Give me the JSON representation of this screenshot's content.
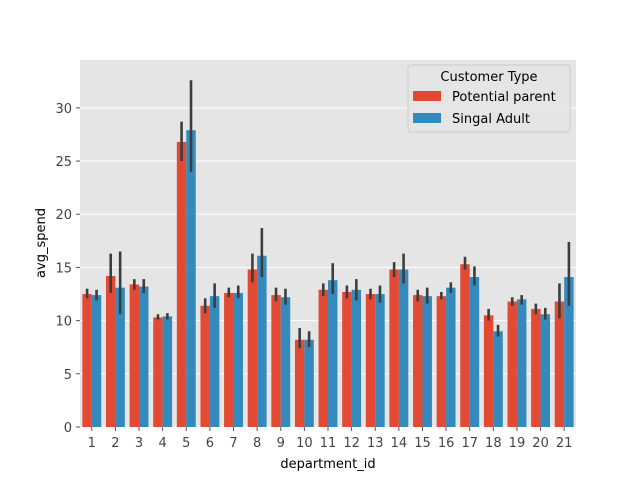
{
  "chart_data": {
    "type": "bar",
    "xlabel": "department_id",
    "ylabel": "avg_spend",
    "ylim": [
      0,
      34.5
    ],
    "yticks": [
      0,
      5,
      10,
      15,
      20,
      25,
      30
    ],
    "grid": true,
    "legend": {
      "title": "Customer Type",
      "placement": "upper right"
    },
    "categories": [
      "1",
      "2",
      "3",
      "4",
      "5",
      "6",
      "7",
      "8",
      "9",
      "10",
      "11",
      "12",
      "13",
      "14",
      "15",
      "16",
      "17",
      "18",
      "19",
      "20",
      "21"
    ],
    "series": [
      {
        "name": "Potential parent",
        "color": "#e24a33",
        "values": [
          12.5,
          14.2,
          13.4,
          10.3,
          26.8,
          11.4,
          12.6,
          14.8,
          12.4,
          8.2,
          12.9,
          12.7,
          12.5,
          14.8,
          12.4,
          12.3,
          15.3,
          10.5,
          11.8,
          11.1,
          11.8
        ],
        "err_low": [
          12.1,
          12.6,
          12.9,
          10.1,
          25.0,
          10.7,
          12.2,
          13.6,
          11.8,
          7.4,
          12.3,
          12.1,
          12.0,
          14.1,
          11.8,
          12.0,
          14.8,
          10.0,
          11.4,
          10.6,
          10.2
        ],
        "err_high": [
          13.0,
          16.3,
          13.9,
          10.6,
          28.7,
          12.1,
          13.1,
          16.3,
          13.1,
          9.3,
          13.5,
          13.3,
          13.0,
          15.5,
          12.9,
          12.7,
          16.0,
          11.1,
          12.2,
          11.6,
          13.5
        ]
      },
      {
        "name": "Singal Adult",
        "color": "#348abd",
        "values": [
          12.4,
          13.1,
          13.2,
          10.4,
          27.9,
          12.3,
          12.6,
          16.1,
          12.2,
          8.2,
          13.8,
          12.9,
          12.5,
          14.8,
          12.3,
          13.1,
          14.1,
          9.0,
          12.0,
          10.6,
          14.1
        ],
        "err_low": [
          11.9,
          10.6,
          12.6,
          10.1,
          24.0,
          11.2,
          12.1,
          14.1,
          11.5,
          7.5,
          12.5,
          11.9,
          11.7,
          13.5,
          11.6,
          12.6,
          13.3,
          8.5,
          11.5,
          10.1,
          11.4
        ],
        "err_high": [
          12.9,
          16.5,
          13.9,
          10.7,
          32.6,
          13.5,
          13.3,
          18.7,
          13.0,
          9.0,
          15.4,
          13.9,
          13.3,
          16.3,
          13.1,
          13.6,
          15.1,
          9.6,
          12.4,
          11.2,
          17.4
        ]
      }
    ]
  }
}
